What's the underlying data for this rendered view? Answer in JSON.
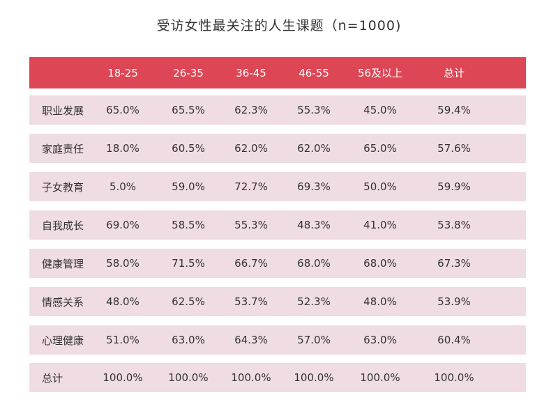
{
  "title": "受访女性最关注的人生课题（n=1000)",
  "chart_data": {
    "type": "table",
    "title": "受访女性最关注的人生课题（n=1000)",
    "columns": [
      "",
      "18-25",
      "26-35",
      "36-45",
      "46-55",
      "56及以上",
      "总计"
    ],
    "rows": [
      {
        "label": "职业发展",
        "values": [
          "65.0%",
          "65.5%",
          "62.3%",
          "55.3%",
          "45.0%",
          "59.4%"
        ]
      },
      {
        "label": "家庭责任",
        "values": [
          "18.0%",
          "60.5%",
          "62.0%",
          "62.0%",
          "65.0%",
          "57.6%"
        ]
      },
      {
        "label": "子女教育",
        "values": [
          "5.0%",
          "59.0%",
          "72.7%",
          "69.3%",
          "50.0%",
          "59.9%"
        ]
      },
      {
        "label": "自我成长",
        "values": [
          "69.0%",
          "58.5%",
          "55.3%",
          "48.3%",
          "41.0%",
          "53.8%"
        ]
      },
      {
        "label": "健康管理",
        "values": [
          "58.0%",
          "71.5%",
          "66.7%",
          "68.0%",
          "68.0%",
          "67.3%"
        ]
      },
      {
        "label": "情感关系",
        "values": [
          "48.0%",
          "62.5%",
          "53.7%",
          "52.3%",
          "48.0%",
          "53.9%"
        ]
      },
      {
        "label": "心理健康",
        "values": [
          "51.0%",
          "63.0%",
          "64.3%",
          "57.0%",
          "63.0%",
          "60.4%"
        ]
      },
      {
        "label": "总计",
        "values": [
          "100.0%",
          "100.0%",
          "100.0%",
          "100.0%",
          "100.0%",
          "100.0%"
        ]
      }
    ]
  },
  "colors": {
    "header_bg": "#dc4655",
    "row_bg": "#efdde3"
  }
}
